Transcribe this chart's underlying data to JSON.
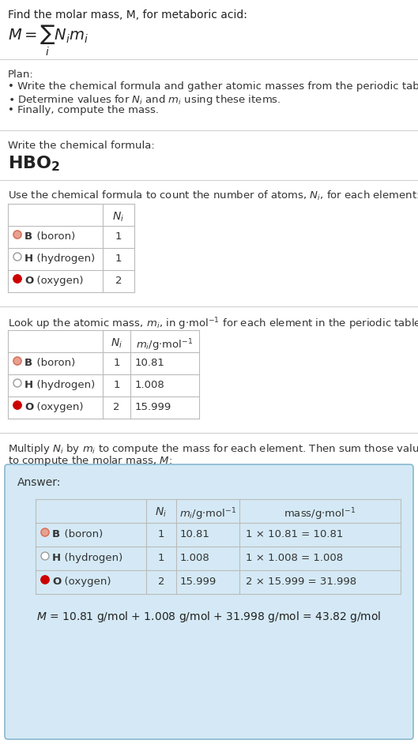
{
  "title_text": "Find the molar mass, M, for metaboric acid:",
  "plan_header": "Plan:",
  "plan_bullets": [
    "• Write the chemical formula and gather atomic masses from the periodic table.",
    "• Determine values for Nᵢ and mᵢ using these items.",
    "• Finally, compute the mass."
  ],
  "step1_header": "Write the chemical formula:",
  "step2_header": "Use the chemical formula to count the number of atoms, Nᵢ, for each element:",
  "step3_header": "Look up the atomic mass, mᵢ, in g·mol⁻¹ for each element in the periodic table:",
  "step4_line1": "Multiply Nᵢ by mᵢ to compute the mass for each element. Then sum those values",
  "step4_line2": "to compute the molar mass, M:",
  "elements": [
    "B (boron)",
    "H (hydrogen)",
    "O (oxygen)"
  ],
  "dot_colors": [
    "#e8a090",
    "#ffffff",
    "#cc0000"
  ],
  "dot_border_colors": [
    "#d4705a",
    "#999999",
    "#cc0000"
  ],
  "Ni": [
    1,
    1,
    2
  ],
  "mi": [
    "10.81",
    "1.008",
    "15.999"
  ],
  "mass_expr": [
    "1 × 10.81 = 10.81",
    "1 × 1.008 = 1.008",
    "2 × 15.999 = 31.998"
  ],
  "answer_box_color": "#d4e9f5",
  "answer_box_border": "#88b8d0",
  "final_eq": "M = 10.81 g/mol + 1.008 g/mol + 31.998 g/mol = 43.82 g/mol",
  "bg_color": "#ffffff",
  "text_color": "#333333",
  "table_line_color": "#bbbbbb",
  "sep_line_color": "#cccccc",
  "font_size": 9.5
}
